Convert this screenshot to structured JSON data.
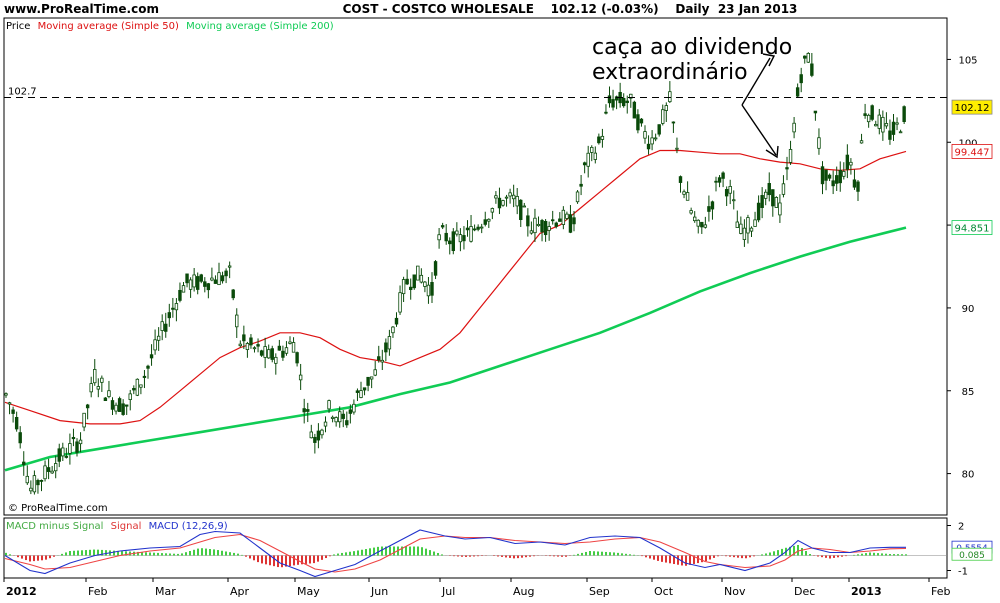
{
  "header": {
    "site": "www.ProRealTime.com",
    "title": "COST - COSTCO WHOLESALE    102.12 (-0.03%)    Daily  23 Jan 2013"
  },
  "legend": {
    "price": "Price",
    "ma50": "Moving average (Simple 50)",
    "ma200": "Moving average (Simple 200)"
  },
  "annotation": {
    "line1": "caça ao dividendo",
    "line2": "extraordinário"
  },
  "watermark": "© ProRealTime.com",
  "macd_legend": {
    "minus": "MACD minus Signal",
    "signal": "Signal",
    "macd": "MACD (12,26,9)"
  },
  "colors": {
    "candle": "#0a4a0a",
    "ma50": "#dd1111",
    "ma200": "#10cc55",
    "macd_line": "#2233cc",
    "signal_line": "#ee4444",
    "hist_pos": "#44cc44",
    "hist_neg": "#dd3333"
  },
  "chart_data": [
    {
      "type": "candlestick",
      "title": "COST - COSTCO WHOLESALE",
      "ylim": [
        77.5,
        107.5
      ],
      "yticks": [
        80,
        85,
        90,
        95,
        100,
        105
      ],
      "x_labels": [
        "2012",
        "Feb",
        "Mar",
        "Apr",
        "May",
        "Jun",
        "Jul",
        "Aug",
        "Sep",
        "Oct",
        "Nov",
        "Dec",
        "2013",
        "Feb"
      ],
      "price_path": [
        [
          0,
          85.5
        ],
        [
          8,
          84.5
        ],
        [
          18,
          83
        ],
        [
          30,
          79
        ],
        [
          45,
          80
        ],
        [
          60,
          81
        ],
        [
          80,
          82
        ],
        [
          95,
          86
        ],
        [
          110,
          84.5
        ],
        [
          125,
          84
        ],
        [
          145,
          86
        ],
        [
          165,
          89
        ],
        [
          185,
          91.5
        ],
        [
          200,
          91.5
        ],
        [
          215,
          91.8
        ],
        [
          230,
          92
        ],
        [
          240,
          88
        ],
        [
          255,
          87.5
        ],
        [
          270,
          87
        ],
        [
          285,
          87.5
        ],
        [
          295,
          88
        ],
        [
          305,
          84
        ],
        [
          315,
          82
        ],
        [
          330,
          84
        ],
        [
          345,
          83
        ],
        [
          360,
          85
        ],
        [
          375,
          86
        ],
        [
          390,
          88
        ],
        [
          405,
          91.5
        ],
        [
          420,
          92
        ],
        [
          432,
          91
        ],
        [
          440,
          94.5
        ],
        [
          455,
          94
        ],
        [
          470,
          94.5
        ],
        [
          485,
          95.5
        ],
        [
          500,
          96.5
        ],
        [
          515,
          96.5
        ],
        [
          530,
          95
        ],
        [
          545,
          95
        ],
        [
          560,
          95.5
        ],
        [
          572,
          95
        ],
        [
          585,
          98.5
        ],
        [
          600,
          100
        ],
        [
          610,
          102.5
        ],
        [
          620,
          102.5
        ],
        [
          630,
          102.5
        ],
        [
          640,
          101
        ],
        [
          650,
          100
        ],
        [
          660,
          101
        ],
        [
          670,
          102.5
        ],
        [
          680,
          98
        ],
        [
          690,
          96
        ],
        [
          700,
          94.5
        ],
        [
          710,
          96
        ],
        [
          720,
          98
        ],
        [
          730,
          97
        ],
        [
          740,
          94.5
        ],
        [
          750,
          95
        ],
        [
          760,
          96
        ],
        [
          770,
          97
        ],
        [
          780,
          96
        ],
        [
          790,
          99
        ],
        [
          800,
          104
        ],
        [
          810,
          105.5
        ],
        [
          822,
          98
        ],
        [
          830,
          97.5
        ],
        [
          840,
          98
        ],
        [
          850,
          99
        ],
        [
          857,
          97
        ],
        [
          865,
          102
        ],
        [
          875,
          101.5
        ],
        [
          890,
          100.5
        ],
        [
          900,
          101
        ],
        [
          906,
          102
        ]
      ],
      "ma50": [
        [
          5,
          84.3
        ],
        [
          30,
          83.8
        ],
        [
          60,
          83.2
        ],
        [
          90,
          83.0
        ],
        [
          120,
          83.0
        ],
        [
          140,
          83.2
        ],
        [
          160,
          84.0
        ],
        [
          180,
          85.0
        ],
        [
          200,
          86.0
        ],
        [
          220,
          87.0
        ],
        [
          240,
          87.6
        ],
        [
          260,
          88.0
        ],
        [
          280,
          88.5
        ],
        [
          300,
          88.5
        ],
        [
          320,
          88.2
        ],
        [
          340,
          87.5
        ],
        [
          360,
          87.0
        ],
        [
          380,
          86.8
        ],
        [
          400,
          86.5
        ],
        [
          420,
          87.0
        ],
        [
          440,
          87.5
        ],
        [
          460,
          88.5
        ],
        [
          480,
          90.0
        ],
        [
          500,
          91.5
        ],
        [
          520,
          93.0
        ],
        [
          540,
          94.5
        ],
        [
          560,
          95.0
        ],
        [
          580,
          96.0
        ],
        [
          600,
          97.0
        ],
        [
          620,
          98.0
        ],
        [
          640,
          99.0
        ],
        [
          660,
          99.5
        ],
        [
          680,
          99.5
        ],
        [
          700,
          99.4
        ],
        [
          720,
          99.3
        ],
        [
          740,
          99.3
        ],
        [
          760,
          99.0
        ],
        [
          780,
          98.8
        ],
        [
          800,
          98.7
        ],
        [
          820,
          98.4
        ],
        [
          840,
          98.3
        ],
        [
          860,
          98.4
        ],
        [
          880,
          99.0
        ],
        [
          906,
          99.45
        ]
      ],
      "ma200": [
        [
          5,
          80.2
        ],
        [
          50,
          81.0
        ],
        [
          100,
          81.5
        ],
        [
          150,
          82.0
        ],
        [
          200,
          82.5
        ],
        [
          250,
          83.0
        ],
        [
          300,
          83.5
        ],
        [
          350,
          84.0
        ],
        [
          400,
          84.8
        ],
        [
          450,
          85.5
        ],
        [
          500,
          86.5
        ],
        [
          550,
          87.5
        ],
        [
          600,
          88.5
        ],
        [
          650,
          89.7
        ],
        [
          700,
          91.0
        ],
        [
          750,
          92.1
        ],
        [
          800,
          93.1
        ],
        [
          850,
          94.0
        ],
        [
          906,
          94.85
        ]
      ],
      "reference_line": {
        "value": 102.7,
        "label": "102.7"
      },
      "last_price": {
        "value": 102.12,
        "label": "102.12"
      },
      "ma50_last": {
        "value": 99.447,
        "label": "99.447"
      },
      "ma200_last": {
        "value": 94.851,
        "label": "94.851"
      }
    },
    {
      "type": "line",
      "title": "MACD (12,26,9)",
      "ylim": [
        -1.5,
        2.5
      ],
      "yticks": [
        2,
        -1
      ],
      "macd_last": {
        "value": 0.5554,
        "label": "0.5554"
      },
      "hist_last": {
        "value": 0.085,
        "label": "0.085"
      },
      "macd_path": [
        [
          5,
          0
        ],
        [
          30,
          -1
        ],
        [
          45,
          -1.2
        ],
        [
          70,
          -0.5
        ],
        [
          95,
          0
        ],
        [
          120,
          0.3
        ],
        [
          150,
          0.5
        ],
        [
          180,
          0.6
        ],
        [
          200,
          1.4
        ],
        [
          215,
          1.6
        ],
        [
          240,
          1.5
        ],
        [
          260,
          0.5
        ],
        [
          280,
          -0.5
        ],
        [
          300,
          -1
        ],
        [
          315,
          -1.4
        ],
        [
          335,
          -1
        ],
        [
          355,
          -0.6
        ],
        [
          380,
          0.3
        ],
        [
          400,
          1.0
        ],
        [
          420,
          1.7
        ],
        [
          445,
          1.3
        ],
        [
          465,
          1.1
        ],
        [
          490,
          1.2
        ],
        [
          515,
          0.8
        ],
        [
          540,
          0.9
        ],
        [
          565,
          0.7
        ],
        [
          590,
          1.2
        ],
        [
          615,
          1.3
        ],
        [
          640,
          1.2
        ],
        [
          660,
          0.5
        ],
        [
          685,
          -0.5
        ],
        [
          705,
          -0.8
        ],
        [
          720,
          -0.6
        ],
        [
          745,
          -1.0
        ],
        [
          770,
          -0.5
        ],
        [
          785,
          0.2
        ],
        [
          798,
          1.0
        ],
        [
          812,
          0.5
        ],
        [
          830,
          0.2
        ],
        [
          850,
          0.2
        ],
        [
          870,
          0.5
        ],
        [
          890,
          0.55
        ],
        [
          906,
          0.55
        ]
      ],
      "signal_path": [
        [
          5,
          -0.2
        ],
        [
          30,
          -0.6
        ],
        [
          45,
          -0.9
        ],
        [
          70,
          -0.8
        ],
        [
          95,
          -0.4
        ],
        [
          120,
          0
        ],
        [
          150,
          0.3
        ],
        [
          180,
          0.5
        ],
        [
          200,
          0.9
        ],
        [
          215,
          1.2
        ],
        [
          240,
          1.4
        ],
        [
          260,
          1.0
        ],
        [
          280,
          0.3
        ],
        [
          300,
          -0.4
        ],
        [
          315,
          -0.9
        ],
        [
          335,
          -1.1
        ],
        [
          355,
          -0.9
        ],
        [
          380,
          -0.3
        ],
        [
          400,
          0.4
        ],
        [
          420,
          1.1
        ],
        [
          445,
          1.3
        ],
        [
          465,
          1.2
        ],
        [
          490,
          1.2
        ],
        [
          515,
          1.0
        ],
        [
          540,
          0.9
        ],
        [
          565,
          0.8
        ],
        [
          590,
          0.9
        ],
        [
          615,
          1.1
        ],
        [
          640,
          1.2
        ],
        [
          660,
          0.9
        ],
        [
          685,
          0.2
        ],
        [
          705,
          -0.4
        ],
        [
          720,
          -0.6
        ],
        [
          745,
          -0.8
        ],
        [
          770,
          -0.7
        ],
        [
          785,
          -0.3
        ],
        [
          798,
          0.3
        ],
        [
          812,
          0.5
        ],
        [
          830,
          0.4
        ],
        [
          850,
          0.2
        ],
        [
          870,
          0.3
        ],
        [
          890,
          0.45
        ],
        [
          906,
          0.47
        ]
      ]
    }
  ]
}
